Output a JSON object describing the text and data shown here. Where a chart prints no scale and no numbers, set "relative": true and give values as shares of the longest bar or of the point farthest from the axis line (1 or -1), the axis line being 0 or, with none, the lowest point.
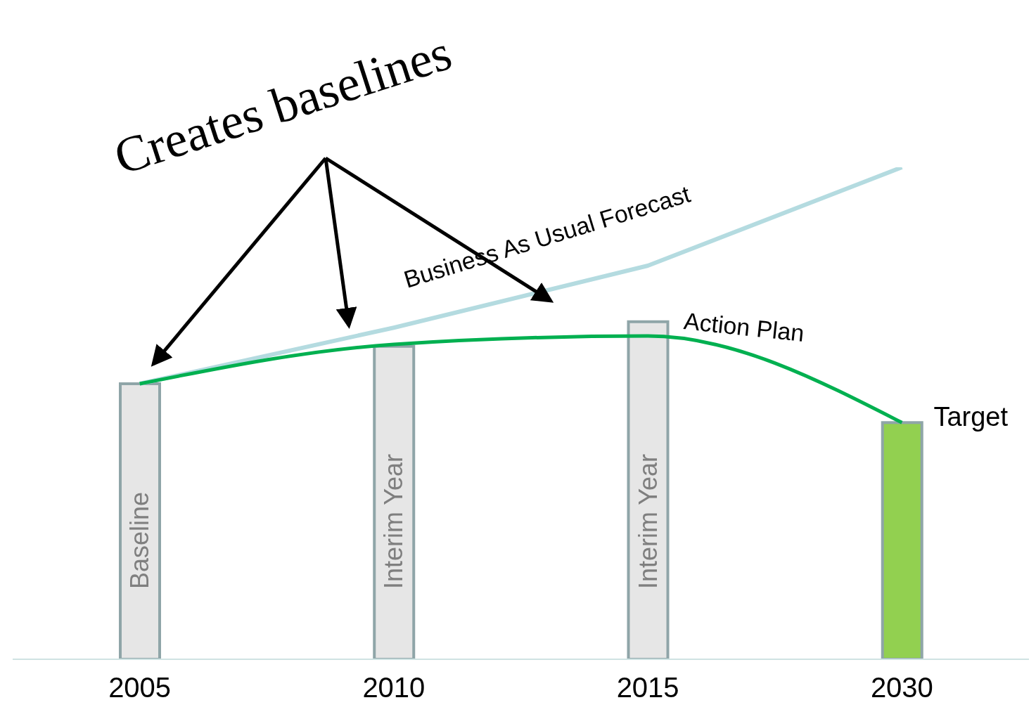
{
  "chart_data": {
    "type": "bar",
    "title": "Creates baselines",
    "relative": true,
    "categories": [
      "2005",
      "2010",
      "2015",
      "2030"
    ],
    "values": [
      0.56,
      0.636,
      0.686,
      0.481
    ],
    "colors": [
      "#e6e6e6",
      "#e6e6e6",
      "#e6e6e6",
      "#92d050"
    ],
    "series": [
      {
        "type": "line",
        "name": "Business As Usual Forecast",
        "color": "#b4dbe0",
        "values": [
          0.56,
          0.674,
          0.8,
          1
        ]
      },
      {
        "type": "line",
        "name": "Action Plan",
        "color": "#00b050",
        "values": [
          0.56,
          0.64,
          0.657,
          0.481
        ]
      }
    ],
    "annotations": [
      "Baseline",
      "Interim Year",
      "Interim Year",
      {
        "text": "Target",
        "x": "2030",
        "y": 0.481
      }
    ]
  }
}
